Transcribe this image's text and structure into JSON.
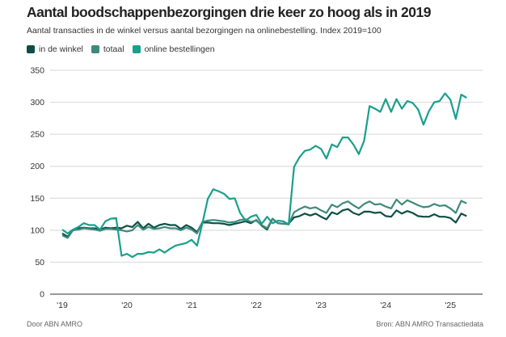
{
  "header": {
    "title": "Aantal boodschappenbezorgingen drie keer zo hoog als in 2019",
    "subtitle": "Aantal transacties in de winkel versus aantal bezorgingen na onlinebestelling. Index 2019=100"
  },
  "footer": {
    "left": "Door ABN AMRO",
    "right": "Bron:  ABN AMRO Transactiedata"
  },
  "chart_data": {
    "type": "line",
    "title": "Aantal boodschappenbezorgingen drie keer zo hoog als in 2019",
    "subtitle": "Aantal transacties in de winkel versus aantal bezorgingen na onlinebestelling. Index 2019=100",
    "x_start": "2019-01",
    "x_end": "2025-04",
    "x_frequency": "monthly",
    "x_ticks": [
      "'19",
      "'20",
      "'21",
      "'22",
      "'23",
      "'24",
      "'25"
    ],
    "y_ticks": [
      0,
      50,
      100,
      150,
      200,
      250,
      300,
      350
    ],
    "ylim": [
      0,
      350
    ],
    "grid": "horizontal",
    "legend_position": "top-left",
    "series": [
      {
        "name": "in de winkel",
        "color": "#0d4f47",
        "values": [
          95,
          90,
          100,
          103,
          104,
          103,
          103,
          101,
          104,
          103,
          104,
          103,
          107,
          105,
          113,
          103,
          110,
          104,
          108,
          110,
          108,
          108,
          102,
          108,
          104,
          97,
          112,
          112,
          111,
          111,
          110,
          108,
          110,
          112,
          114,
          111,
          116,
          107,
          101,
          118,
          111,
          110,
          110,
          120,
          122,
          126,
          123,
          126,
          121,
          117,
          128,
          125,
          131,
          133,
          127,
          124,
          129,
          129,
          127,
          128,
          122,
          121,
          131,
          126,
          130,
          127,
          122,
          121,
          121,
          125,
          121,
          121,
          119,
          112,
          126,
          122
        ]
      },
      {
        "name": "totaal",
        "color": "#3f8a7d",
        "values": [
          92,
          88,
          100,
          101,
          103,
          102,
          101,
          99,
          102,
          102,
          101,
          100,
          98,
          100,
          108,
          101,
          105,
          102,
          103,
          105,
          103,
          103,
          100,
          104,
          101,
          95,
          113,
          115,
          116,
          115,
          114,
          112,
          113,
          116,
          117,
          113,
          115,
          108,
          103,
          118,
          111,
          110,
          109,
          128,
          133,
          137,
          134,
          136,
          131,
          127,
          140,
          136,
          142,
          145,
          139,
          134,
          141,
          145,
          140,
          141,
          137,
          134,
          148,
          140,
          147,
          143,
          139,
          136,
          137,
          141,
          138,
          139,
          134,
          127,
          146,
          142
        ]
      },
      {
        "name": "online bestellingen",
        "color": "#1a9f8c",
        "values": [
          101,
          95,
          101,
          105,
          111,
          108,
          108,
          101,
          114,
          118,
          119,
          60,
          63,
          58,
          63,
          63,
          66,
          65,
          70,
          65,
          71,
          76,
          78,
          80,
          85,
          76,
          111,
          149,
          164,
          161,
          157,
          149,
          150,
          127,
          115,
          121,
          124,
          110,
          121,
          111,
          115,
          114,
          109,
          199,
          214,
          224,
          226,
          232,
          227,
          212,
          234,
          230,
          245,
          245,
          234,
          219,
          240,
          294,
          290,
          285,
          305,
          285,
          305,
          290,
          302,
          299,
          289,
          265,
          286,
          300,
          302,
          314,
          304,
          274,
          312,
          307
        ]
      }
    ]
  }
}
